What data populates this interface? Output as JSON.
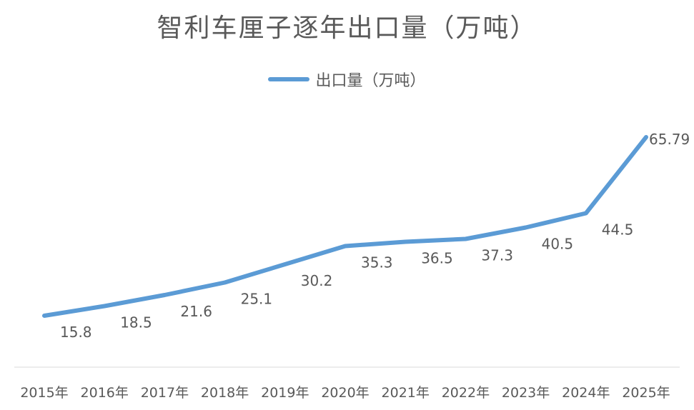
{
  "chart_data": {
    "type": "line",
    "title": "智利车厘子逐年出口量（万吨）",
    "categories": [
      "2015年",
      "2016年",
      "2017年",
      "2018年",
      "2019年",
      "2020年",
      "2021年",
      "2022年",
      "2023年",
      "2024年",
      "2025年"
    ],
    "series": [
      {
        "name": "出口量（万吨）",
        "values": [
          15.8,
          18.5,
          21.6,
          25.1,
          30.2,
          35.3,
          36.5,
          37.3,
          40.5,
          44.5,
          65.79
        ],
        "labels": [
          "15.8",
          "18.5",
          "21.6",
          "25.1",
          "30.2",
          "35.3",
          "36.5",
          "37.3",
          "40.5",
          "44.5",
          "65.79"
        ]
      }
    ],
    "xlabel": "",
    "ylabel": "",
    "grid": false,
    "legend_position": "top",
    "line_color": "#5B9BD5",
    "text_color": "#595959",
    "axis_color": "#d9d9d9"
  }
}
